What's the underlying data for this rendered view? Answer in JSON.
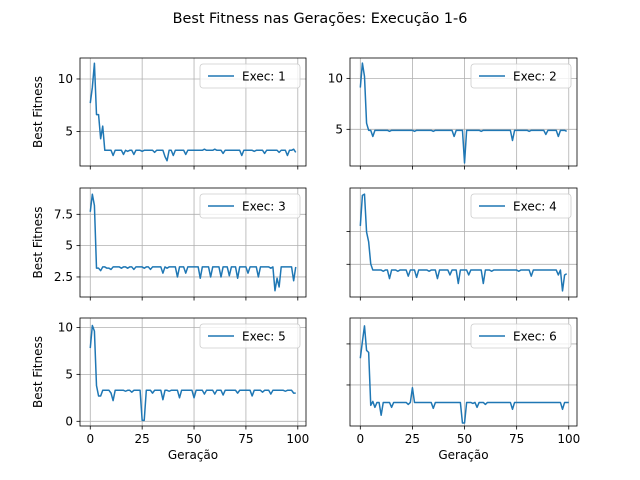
{
  "figure": {
    "title": "Best Fitness nas Gerações: Execução 1-6",
    "xlabel": "Geração",
    "ylabel": "Best Fitness"
  },
  "colors": {
    "line": "#1f77b4",
    "grid": "#b0b0b0"
  },
  "chart_data": [
    {
      "type": "line",
      "legend": "Exec: 1",
      "legend_loc": "upper right",
      "grid": true,
      "xlim": [
        -4.95,
        103.95
      ],
      "ylim": [
        1.7,
        12.0
      ],
      "xticks": [
        0,
        25,
        50,
        75,
        100
      ],
      "yticks": [
        5,
        10
      ],
      "x_start": 0,
      "y": [
        7.7,
        9.2,
        11.5,
        6.6,
        6.6,
        4.3,
        5.5,
        3.2,
        3.2,
        3.2,
        3.2,
        2.7,
        3.2,
        3.2,
        3.2,
        3.2,
        2.8,
        3.2,
        3.1,
        3.2,
        3.2,
        2.8,
        3.2,
        3.2,
        3.2,
        3.1,
        3.2,
        3.2,
        3.2,
        3.2,
        3.2,
        3.0,
        3.2,
        3.2,
        3.2,
        3.2,
        2.6,
        2.2,
        3.2,
        3.2,
        2.7,
        3.2,
        3.2,
        3.2,
        3.2,
        3.2,
        2.8,
        3.2,
        3.2,
        3.2,
        3.2,
        3.2,
        3.2,
        3.2,
        3.2,
        3.3,
        3.2,
        3.2,
        3.2,
        3.2,
        3.3,
        3.2,
        3.2,
        3.2,
        2.9,
        3.2,
        3.2,
        3.2,
        3.2,
        3.2,
        3.2,
        3.2,
        3.2,
        2.7,
        3.2,
        3.2,
        3.2,
        3.2,
        3.2,
        3.1,
        3.2,
        3.2,
        3.2,
        3.2,
        2.9,
        3.2,
        3.2,
        3.2,
        3.2,
        3.2,
        3.2,
        3.0,
        3.2,
        3.2,
        3.2,
        2.7,
        3.2,
        3.2,
        3.3,
        3.0
      ]
    },
    {
      "type": "line",
      "legend": "Exec: 2",
      "legend_loc": "upper right",
      "grid": true,
      "xlim": [
        -4.95,
        103.95
      ],
      "ylim": [
        1.4,
        12.0
      ],
      "xticks": [
        0,
        25,
        50,
        75,
        100
      ],
      "yticks": [
        5,
        10
      ],
      "x_start": 0,
      "y": [
        9.1,
        11.5,
        10.2,
        5.6,
        4.9,
        4.9,
        4.3,
        4.9,
        4.9,
        4.9,
        4.9,
        4.9,
        4.9,
        4.9,
        4.8,
        4.9,
        4.9,
        4.9,
        4.9,
        4.9,
        4.9,
        4.9,
        4.9,
        4.9,
        4.9,
        4.9,
        4.8,
        4.9,
        4.9,
        4.9,
        4.9,
        4.9,
        4.9,
        4.9,
        4.9,
        4.8,
        4.9,
        4.9,
        4.9,
        4.9,
        4.9,
        4.9,
        4.9,
        4.9,
        4.9,
        4.3,
        4.9,
        4.9,
        4.9,
        4.9,
        1.7,
        4.9,
        4.9,
        4.9,
        4.9,
        4.9,
        4.9,
        4.9,
        4.8,
        4.9,
        4.9,
        4.9,
        4.9,
        4.9,
        4.9,
        4.9,
        4.9,
        4.9,
        4.9,
        4.9,
        4.9,
        4.9,
        4.9,
        3.9,
        4.9,
        4.9,
        4.9,
        4.9,
        4.9,
        4.9,
        4.9,
        4.8,
        4.9,
        4.9,
        4.9,
        4.9,
        4.9,
        4.9,
        4.9,
        4.5,
        4.9,
        4.9,
        4.9,
        4.9,
        4.9,
        4.3,
        4.9,
        4.9,
        4.9,
        4.8
      ]
    },
    {
      "type": "line",
      "legend": "Exec: 3",
      "legend_loc": "upper right",
      "grid": true,
      "xlim": [
        -4.95,
        103.95
      ],
      "ylim": [
        0.9,
        9.6
      ],
      "xticks": [
        0,
        25,
        50,
        75,
        100
      ],
      "yticks": [
        2.5,
        5.0,
        7.5
      ],
      "x_start": 0,
      "y": [
        7.7,
        9.1,
        8.2,
        3.2,
        3.2,
        3.0,
        3.3,
        3.3,
        3.2,
        3.2,
        3.1,
        3.3,
        3.3,
        3.3,
        3.3,
        3.2,
        3.3,
        3.3,
        3.2,
        3.3,
        3.3,
        3.1,
        3.3,
        3.3,
        3.3,
        3.3,
        3.2,
        3.3,
        3.3,
        3.1,
        3.3,
        3.3,
        3.3,
        3.3,
        3.3,
        2.8,
        3.3,
        3.2,
        3.3,
        3.3,
        3.3,
        3.3,
        2.5,
        3.3,
        3.3,
        3.3,
        2.8,
        3.3,
        3.3,
        3.3,
        3.3,
        3.3,
        3.3,
        2.4,
        3.3,
        3.3,
        3.3,
        3.3,
        2.5,
        3.3,
        3.3,
        3.3,
        3.3,
        2.5,
        3.3,
        3.3,
        3.3,
        2.6,
        3.3,
        3.3,
        3.3,
        2.4,
        3.3,
        3.3,
        3.3,
        3.3,
        2.8,
        3.3,
        3.3,
        3.3,
        3.3,
        2.5,
        3.3,
        3.3,
        3.3,
        3.3,
        3.3,
        3.2,
        3.3,
        1.4,
        2.4,
        1.7,
        3.3,
        3.3,
        3.3,
        3.3,
        3.3,
        3.3,
        2.2,
        3.3
      ]
    },
    {
      "type": "line",
      "legend": "Exec: 4",
      "legend_loc": "upper right",
      "grid": true,
      "xlim": [
        -4.95,
        103.95
      ],
      "ylim": [
        0.8,
        9.7
      ],
      "xticks": [
        0,
        25,
        50,
        75,
        100
      ],
      "yticks": [],
      "x_start": 0,
      "y": [
        6.6,
        9.1,
        9.2,
        6.1,
        5.3,
        3.5,
        3.0,
        3.0,
        3.0,
        3.0,
        3.0,
        2.9,
        3.0,
        3.0,
        2.3,
        3.0,
        3.0,
        3.0,
        2.9,
        3.0,
        3.0,
        3.0,
        3.0,
        2.5,
        3.0,
        3.0,
        3.0,
        2.4,
        3.0,
        3.0,
        3.0,
        3.0,
        3.0,
        2.9,
        3.0,
        3.0,
        3.0,
        2.3,
        3.0,
        3.0,
        3.0,
        3.0,
        3.0,
        2.6,
        3.0,
        3.0,
        3.0,
        1.9,
        3.0,
        3.0,
        3.0,
        3.0,
        2.6,
        3.0,
        3.0,
        3.0,
        3.0,
        3.0,
        3.0,
        1.9,
        3.0,
        3.0,
        3.0,
        2.9,
        3.0,
        3.0,
        3.0,
        3.0,
        3.0,
        3.0,
        3.0,
        3.0,
        3.0,
        3.0,
        3.0,
        3.0,
        2.9,
        3.0,
        3.0,
        3.0,
        3.0,
        3.0,
        2.5,
        3.0,
        3.0,
        3.0,
        3.0,
        3.0,
        3.0,
        3.0,
        3.0,
        3.0,
        3.0,
        3.0,
        3.0,
        2.6,
        3.0,
        1.3,
        2.6,
        2.7
      ]
    },
    {
      "type": "line",
      "legend": "Exec: 5",
      "legend_loc": "upper right",
      "grid": true,
      "xlim": [
        -4.95,
        103.95
      ],
      "ylim": [
        -0.5,
        11.0
      ],
      "xticks": [
        0,
        25,
        50,
        75,
        100
      ],
      "yticks": [
        0,
        5,
        10
      ],
      "x_start": 0,
      "y": [
        7.8,
        10.2,
        9.6,
        3.8,
        2.7,
        2.7,
        3.3,
        3.3,
        3.3,
        3.3,
        3.0,
        2.2,
        3.3,
        3.3,
        3.3,
        3.3,
        3.3,
        3.2,
        3.3,
        3.3,
        3.1,
        3.3,
        3.3,
        3.3,
        3.3,
        0.1,
        0.1,
        3.3,
        3.3,
        3.3,
        3.0,
        3.3,
        3.3,
        3.3,
        3.3,
        2.3,
        3.3,
        3.3,
        3.2,
        3.3,
        3.3,
        3.3,
        3.3,
        2.5,
        3.3,
        3.3,
        3.3,
        3.3,
        3.3,
        3.3,
        2.5,
        3.3,
        3.3,
        3.3,
        3.3,
        2.9,
        3.3,
        3.3,
        3.3,
        3.3,
        2.9,
        3.3,
        3.3,
        3.3,
        2.8,
        3.3,
        3.3,
        3.3,
        3.3,
        3.3,
        3.3,
        3.0,
        3.3,
        3.3,
        3.3,
        3.3,
        3.3,
        3.3,
        2.7,
        3.3,
        3.3,
        3.3,
        3.3,
        3.1,
        3.3,
        3.3,
        3.3,
        2.9,
        3.3,
        3.3,
        3.3,
        3.3,
        3.3,
        3.3,
        3.2,
        3.3,
        3.3,
        3.3,
        3.0,
        3.0
      ]
    },
    {
      "type": "line",
      "legend": "Exec: 6",
      "legend_loc": "upper right",
      "grid": true,
      "xlim": [
        -4.95,
        103.95
      ],
      "ylim": [
        0.0,
        11.0
      ],
      "xticks": [
        0,
        25,
        50,
        75,
        100
      ],
      "yticks": [],
      "x_start": 0,
      "y": [
        6.9,
        8.6,
        10.2,
        7.7,
        7.5,
        2.1,
        2.5,
        1.9,
        2.4,
        2.4,
        1.1,
        2.4,
        2.4,
        2.4,
        2.4,
        1.9,
        2.4,
        2.4,
        2.4,
        2.4,
        2.4,
        2.4,
        2.4,
        2.2,
        2.4,
        3.9,
        2.4,
        2.4,
        2.4,
        2.4,
        2.4,
        2.4,
        2.4,
        2.4,
        2.4,
        1.8,
        2.4,
        2.4,
        2.4,
        2.4,
        2.4,
        2.4,
        2.4,
        2.4,
        2.4,
        2.4,
        2.4,
        2.4,
        2.4,
        0.3,
        0.3,
        2.4,
        2.4,
        2.4,
        2.3,
        2.4,
        1.9,
        2.4,
        2.4,
        2.4,
        2.2,
        2.4,
        2.4,
        2.4,
        2.4,
        2.4,
        2.4,
        2.4,
        2.4,
        2.4,
        2.4,
        2.4,
        2.4,
        1.7,
        2.4,
        2.4,
        2.4,
        2.4,
        2.4,
        2.4,
        2.4,
        2.4,
        2.4,
        2.4,
        2.4,
        2.4,
        2.4,
        2.4,
        2.4,
        2.4,
        2.4,
        2.4,
        2.4,
        2.4,
        2.4,
        2.4,
        2.4,
        1.7,
        2.4,
        2.4,
        2.4
      ]
    }
  ]
}
